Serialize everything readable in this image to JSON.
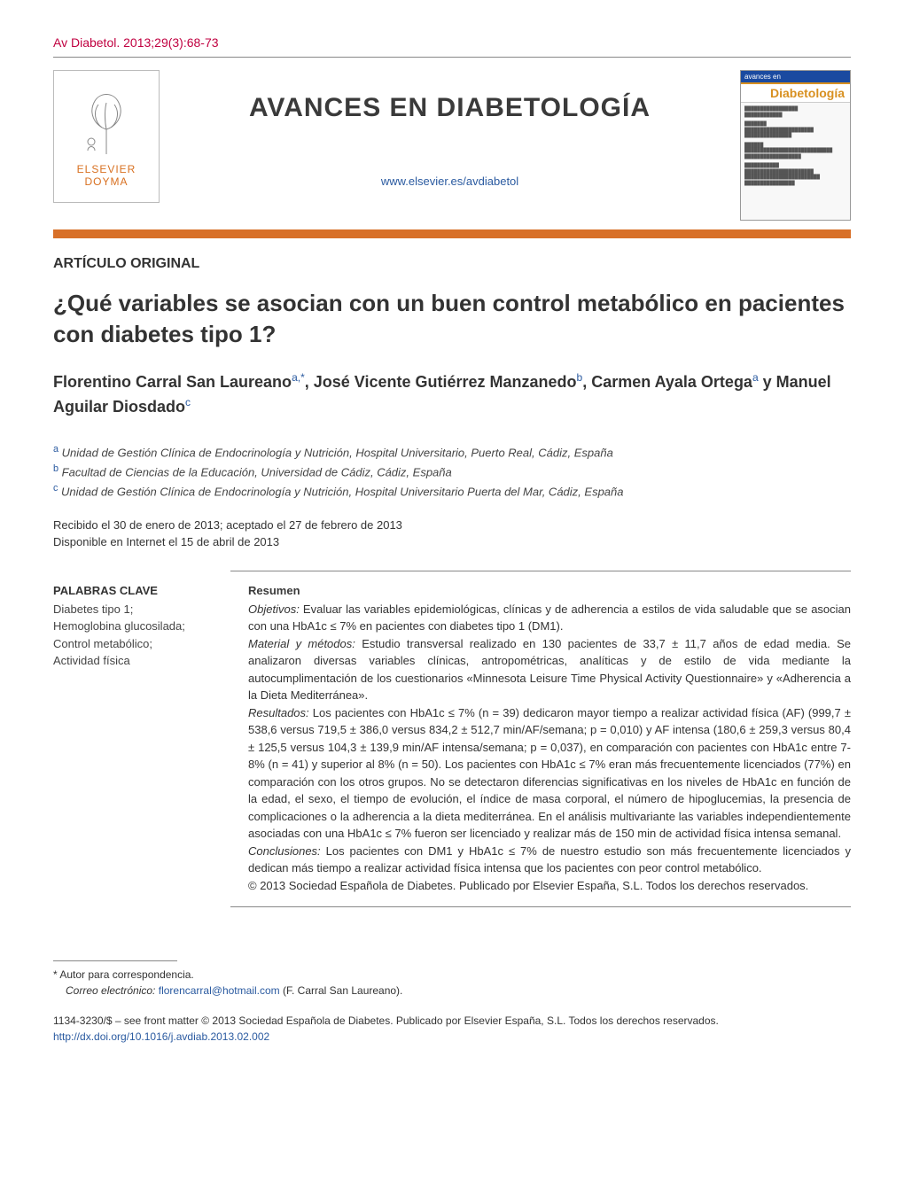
{
  "citation": "Av Diabetol. 2013;29(3):68-73",
  "header": {
    "publisher_logo_top": "ELSEVIER",
    "publisher_logo_bottom": "DOYMA",
    "journal_name": "AVANCES EN DIABETOLOGÍA",
    "journal_url": "www.elsevier.es/avdiabetol",
    "cover_brand": "Diabetología"
  },
  "colors": {
    "accent": "#d87028",
    "link": "#2a5aa0",
    "citation": "#c00040",
    "logo_orange": "#d87020",
    "text": "#3a3a3a"
  },
  "article_type": "ARTÍCULO ORIGINAL",
  "title": "¿Qué variables se asocian con un buen control metabólico en pacientes con diabetes tipo 1?",
  "authors_html": "Florentino Carral San Laureano<sup>a,*</sup>, José Vicente Gutiérrez Manzanedo<sup>b</sup>, Carmen Ayala Ortega<sup>a</sup> y Manuel Aguilar Diosdado<sup>c</sup>",
  "affiliations": [
    {
      "sup": "a",
      "text": "Unidad de Gestión Clínica de Endocrinología y Nutrición, Hospital Universitario, Puerto Real, Cádiz, España"
    },
    {
      "sup": "b",
      "text": "Facultad de Ciencias de la Educación, Universidad de Cádiz, Cádiz, España"
    },
    {
      "sup": "c",
      "text": "Unidad de Gestión Clínica de Endocrinología y Nutrición, Hospital Universitario Puerta del Mar, Cádiz, España"
    }
  ],
  "dates": {
    "received_accepted": "Recibido el 30 de enero de 2013; aceptado el 27 de febrero de 2013",
    "online": "Disponible en Internet el 15 de abril de 2013"
  },
  "keywords": {
    "heading": "PALABRAS CLAVE",
    "list": "Diabetes tipo 1;\nHemoglobina glucosilada;\nControl metabólico;\nActividad física"
  },
  "abstract": {
    "heading": "Resumen",
    "objetivos_label": "Objetivos:",
    "objetivos": " Evaluar las variables epidemiológicas, clínicas y de adherencia a estilos de vida saludable que se asocian con una HbA1c ≤ 7% en pacientes con diabetes tipo 1 (DM1).",
    "material_label": "Material y métodos:",
    "material": " Estudio transversal realizado en 130 pacientes de 33,7 ± 11,7 años de edad media. Se analizaron diversas variables clínicas, antropométricas, analíticas y de estilo de vida mediante la autocumplimentación de los cuestionarios «Minnesota Leisure Time Physical Activity Questionnaire» y «Adherencia a la Dieta Mediterránea».",
    "resultados_label": "Resultados:",
    "resultados": " Los pacientes con HbA1c ≤ 7% (n = 39) dedicaron mayor tiempo a realizar actividad física (AF) (999,7 ± 538,6 versus 719,5 ± 386,0 versus 834,2 ± 512,7 min/AF/semana; p = 0,010) y AF intensa (180,6 ± 259,3 versus 80,4 ± 125,5 versus 104,3 ± 139,9 min/AF intensa/semana; p = 0,037), en comparación con pacientes con HbA1c entre 7-8% (n = 41) y superior al 8% (n = 50). Los pacientes con HbA1c ≤ 7% eran más frecuentemente licenciados (77%) en comparación con los otros grupos. No se detectaron diferencias significativas en los niveles de HbA1c en función de la edad, el sexo, el tiempo de evolución, el índice de masa corporal, el número de hipoglucemias, la presencia de complicaciones o la adherencia a la dieta mediterránea. En el análisis multivariante las variables independientemente asociadas con una HbA1c ≤ 7% fueron ser licenciado y realizar más de 150 min de actividad física intensa semanal.",
    "conclusiones_label": "Conclusiones:",
    "conclusiones": " Los pacientes con DM1 y HbA1c ≤ 7% de nuestro estudio son más frecuentemente licenciados y dedican más tiempo a realizar actividad física intensa que los pacientes con peor control metabólico.",
    "copyright_line": "© 2013 Sociedad Española de Diabetes. Publicado por Elsevier España, S.L. Todos los derechos reservados."
  },
  "footnotes": {
    "corr_symbol": "*",
    "corr_text": "Autor para correspondencia.",
    "email_label": "Correo electrónico:",
    "email": "florencarral@hotmail.com",
    "email_author": "(F. Carral San Laureano)."
  },
  "copyright": {
    "line1": "1134-3230/$ – see front matter © 2013 Sociedad Española de Diabetes. Publicado por Elsevier España, S.L. Todos los derechos reservados.",
    "doi": "http://dx.doi.org/10.1016/j.avdiab.2013.02.002"
  }
}
